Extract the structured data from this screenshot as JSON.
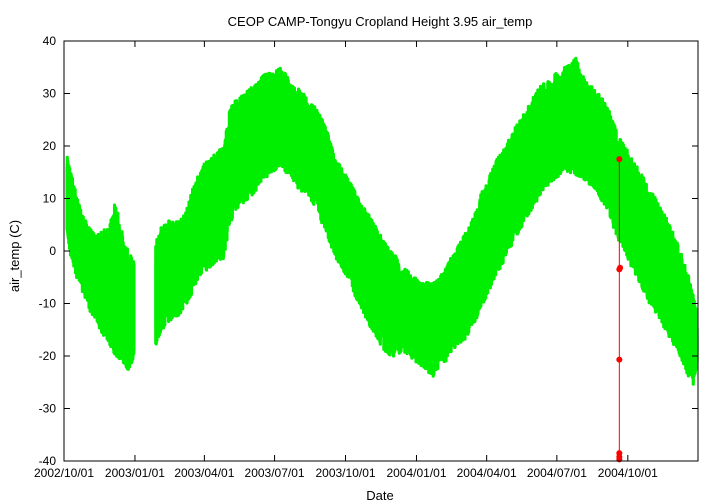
{
  "chart_data": {
    "type": "scatter",
    "title": "CEOP CAMP-Tongyu Cropland Height 3.95 air_temp",
    "xlabel": "Date",
    "ylabel": "air_temp (C)",
    "xlim": [
      "2002-10-01",
      "2004-12-31"
    ],
    "ylim": [
      -40,
      40
    ],
    "grid": false,
    "legend": "none",
    "x_ticks": [
      {
        "date": "2002-10-01",
        "label": "2002/10/01"
      },
      {
        "date": "2003-01-01",
        "label": "2003/01/01"
      },
      {
        "date": "2003-04-01",
        "label": "2003/04/01"
      },
      {
        "date": "2003-07-01",
        "label": "2003/07/01"
      },
      {
        "date": "2003-10-01",
        "label": "2003/10/01"
      },
      {
        "date": "2004-01-01",
        "label": "2004/01/01"
      },
      {
        "date": "2004-04-01",
        "label": "2004/04/01"
      },
      {
        "date": "2004-07-01",
        "label": "2004/07/01"
      },
      {
        "date": "2004-10-01",
        "label": "2004/10/01"
      }
    ],
    "y_ticks": [
      -40,
      -30,
      -20,
      -10,
      0,
      10,
      20,
      30,
      40
    ],
    "series": [
      {
        "color": "#00ee00",
        "segments": [
          {
            "dates": [
              "2002-10-05",
              "2002-10-12",
              "2002-10-20",
              "2002-10-28",
              "2002-11-05",
              "2002-11-13",
              "2002-11-21",
              "2002-11-29",
              "2002-12-07",
              "2002-12-15",
              "2002-12-23",
              "2002-12-31"
            ],
            "mean": [
              11,
              6,
              2,
              0,
              -3,
              -6,
              -9,
              -11,
              -13,
              -14,
              -15,
              -15
            ],
            "low": [
              3,
              -3,
              -6,
              -9,
              -12,
              -14,
              -16,
              -18,
              -20,
              -21,
              -23,
              -20
            ],
            "high": [
              18,
              14,
              9,
              6,
              4,
              3,
              4,
              5,
              10,
              4,
              0,
              -2
            ]
          },
          {
            "dates": [
              "2003-01-28",
              "2003-02-05",
              "2003-02-13",
              "2003-02-21",
              "2003-03-01",
              "2003-03-09",
              "2003-03-17",
              "2003-03-25",
              "2003-04-02",
              "2003-04-10",
              "2003-04-18",
              "2003-04-26",
              "2003-05-04",
              "2003-05-12",
              "2003-05-20",
              "2003-05-28",
              "2003-06-05",
              "2003-06-13",
              "2003-06-21",
              "2003-06-29",
              "2003-07-07",
              "2003-07-15",
              "2003-07-23",
              "2003-07-31",
              "2003-08-08",
              "2003-08-16",
              "2003-08-24",
              "2003-09-01",
              "2003-09-09",
              "2003-09-17",
              "2003-09-25",
              "2003-10-03",
              "2003-10-11",
              "2003-10-19",
              "2003-10-27",
              "2003-11-04",
              "2003-11-12",
              "2003-11-20",
              "2003-11-28",
              "2003-12-06",
              "2003-12-14",
              "2003-12-22",
              "2003-12-30",
              "2004-01-07",
              "2004-01-15",
              "2004-01-23",
              "2004-01-31",
              "2004-02-08",
              "2004-02-16",
              "2004-02-24",
              "2004-03-03",
              "2004-03-11",
              "2004-03-19",
              "2004-03-27",
              "2004-04-04",
              "2004-04-12",
              "2004-04-20",
              "2004-04-28",
              "2004-05-06",
              "2004-05-14",
              "2004-05-22",
              "2004-05-30",
              "2004-06-07",
              "2004-06-15",
              "2004-06-23",
              "2004-07-01",
              "2004-07-09",
              "2004-07-17",
              "2004-07-25",
              "2004-08-02",
              "2004-08-10",
              "2004-08-18",
              "2004-08-26",
              "2004-09-03",
              "2004-09-11",
              "2004-09-19",
              "2004-09-27",
              "2004-10-05",
              "2004-10-13",
              "2004-10-21",
              "2004-10-29",
              "2004-11-06",
              "2004-11-14",
              "2004-11-22",
              "2004-11-30",
              "2004-12-08",
              "2004-12-16",
              "2004-12-24",
              "2004-12-30"
            ],
            "mean": [
              -8,
              -5,
              -4,
              -4,
              -3,
              -1,
              2,
              5,
              7,
              9,
              10,
              11,
              17,
              19,
              20,
              21,
              22,
              23,
              24,
              24,
              25,
              24,
              23,
              22,
              21,
              20,
              18,
              16,
              13,
              10,
              8,
              6,
              4,
              2,
              0,
              -2,
              -4,
              -6,
              -8,
              -10,
              -12,
              -13,
              -13,
              -14,
              -15,
              -15,
              -14,
              -12,
              -10,
              -8,
              -6,
              -4,
              -2,
              1,
              3,
              6,
              8,
              10,
              12,
              14,
              16,
              18,
              19,
              20,
              21,
              22,
              23,
              24,
              24,
              23,
              22,
              21,
              20,
              18,
              15,
              12,
              10,
              8,
              6,
              4,
              2,
              0,
              -2,
              -5,
              -8,
              -11,
              -14,
              -17,
              -19
            ],
            "low": [
              -18,
              -15,
              -14,
              -13,
              -12,
              -10,
              -8,
              -5,
              -4,
              -3,
              -2,
              -2,
              5,
              8,
              9,
              10,
              11,
              13,
              14,
              15,
              16,
              15,
              14,
              12,
              11,
              10,
              8,
              5,
              2,
              -1,
              -3,
              -5,
              -8,
              -10,
              -13,
              -15,
              -17,
              -19,
              -20,
              -20,
              -19,
              -20,
              -21,
              -22,
              -23,
              -24,
              -22,
              -21,
              -19,
              -18,
              -17,
              -15,
              -13,
              -10,
              -8,
              -5,
              -3,
              -1,
              2,
              4,
              6,
              8,
              10,
              12,
              13,
              14,
              15,
              15,
              14,
              14,
              13,
              12,
              10,
              8,
              5,
              2,
              0,
              -3,
              -5,
              -8,
              -10,
              -12,
              -14,
              -16,
              -18,
              -20,
              -23,
              -26,
              -22
            ],
            "high": [
              2,
              5,
              6,
              6,
              6,
              8,
              12,
              15,
              17,
              18,
              19,
              20,
              27,
              29,
              30,
              31,
              32,
              33,
              34,
              34,
              35,
              34,
              32,
              31,
              30,
              29,
              27,
              25,
              22,
              18,
              16,
              14,
              12,
              10,
              8,
              6,
              4,
              2,
              0,
              -1,
              -3,
              -4,
              -5,
              -6,
              -6,
              -6,
              -5,
              -3,
              -1,
              1,
              3,
              5,
              8,
              12,
              14,
              17,
              19,
              21,
              23,
              25,
              27,
              29,
              31,
              32,
              33,
              34,
              35,
              36,
              37,
              34,
              32,
              31,
              30,
              28,
              25,
              22,
              20,
              18,
              16,
              14,
              12,
              10,
              8,
              6,
              3,
              0,
              -3,
              -8,
              -12
            ]
          }
        ]
      },
      {
        "color": "#ff0000",
        "points": [
          {
            "date": "2004-09-20",
            "value": 17.5
          },
          {
            "date": "2004-09-20",
            "value": -3.5
          },
          {
            "date": "2004-09-20",
            "value": -20.7
          },
          {
            "date": "2004-09-20",
            "value": -38.5
          },
          {
            "date": "2004-09-20",
            "value": -39.2
          },
          {
            "date": "2004-09-20",
            "value": -39.7
          },
          {
            "date": "2004-09-21",
            "value": -3.2
          }
        ]
      }
    ]
  }
}
